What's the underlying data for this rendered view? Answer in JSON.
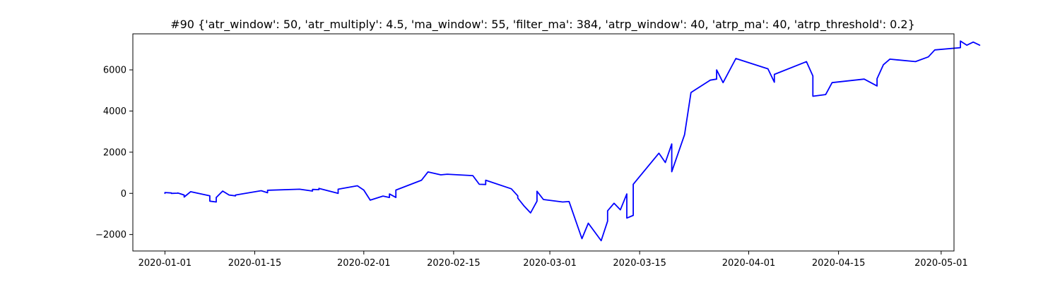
{
  "chart_data": {
    "type": "line",
    "title": "#90 {'atr_window': 50, 'atr_multiply': 4.5, 'ma_window': 55, 'filter_ma': 384, 'atrp_window': 40, 'atrp_ma': 40, 'atrp_threshold': 0.2}",
    "xlabel": "",
    "ylabel": "",
    "grid": false,
    "xlim": [
      "2019-12-27",
      "2020-05-03"
    ],
    "ylim": [
      -2800,
      7750
    ],
    "x_ticks": [
      "2020-01-01",
      "2020-01-15",
      "2020-02-01",
      "2020-02-15",
      "2020-03-01",
      "2020-03-15",
      "2020-04-01",
      "2020-04-15",
      "2020-05-01"
    ],
    "y_ticks": [
      -2000,
      0,
      2000,
      4000,
      6000
    ],
    "y_tick_labels": [
      "−2000",
      "0",
      "2000",
      "4000",
      "6000"
    ],
    "series": [
      {
        "color": "#0000ff",
        "points": [
          [
            "2020-01-01",
            0
          ],
          [
            "2020-01-01",
            40
          ],
          [
            "2020-01-02",
            20
          ],
          [
            "2020-01-02",
            0
          ],
          [
            "2020-01-03",
            10
          ],
          [
            "2020-01-03",
            20
          ],
          [
            "2020-01-04",
            -80
          ],
          [
            "2020-01-04",
            -180
          ],
          [
            "2020-01-05",
            80
          ],
          [
            "2020-01-08",
            -120
          ],
          [
            "2020-01-08",
            -380
          ],
          [
            "2020-01-09",
            -420
          ],
          [
            "2020-01-09",
            -200
          ],
          [
            "2020-01-10",
            110
          ],
          [
            "2020-01-11",
            -80
          ],
          [
            "2020-01-12",
            -120
          ],
          [
            "2020-01-12",
            -80
          ],
          [
            "2020-01-16",
            130
          ],
          [
            "2020-01-17",
            30
          ],
          [
            "2020-01-17",
            150
          ],
          [
            "2020-01-22",
            200
          ],
          [
            "2020-01-24",
            110
          ],
          [
            "2020-01-24",
            190
          ],
          [
            "2020-01-25",
            180
          ],
          [
            "2020-01-25",
            240
          ],
          [
            "2020-01-28",
            0
          ],
          [
            "2020-01-28",
            200
          ],
          [
            "2020-01-31",
            370
          ],
          [
            "2020-02-01",
            160
          ],
          [
            "2020-02-02",
            -330
          ],
          [
            "2020-02-04",
            -130
          ],
          [
            "2020-02-05",
            -200
          ],
          [
            "2020-02-05",
            -30
          ],
          [
            "2020-02-06",
            -200
          ],
          [
            "2020-02-06",
            160
          ],
          [
            "2020-02-10",
            640
          ],
          [
            "2020-02-11",
            1040
          ],
          [
            "2020-02-13",
            900
          ],
          [
            "2020-02-14",
            930
          ],
          [
            "2020-02-18",
            860
          ],
          [
            "2020-02-19",
            440
          ],
          [
            "2020-02-20",
            430
          ],
          [
            "2020-02-20",
            640
          ],
          [
            "2020-02-24",
            220
          ],
          [
            "2020-02-25",
            -120
          ],
          [
            "2020-02-25",
            -230
          ],
          [
            "2020-02-26",
            -620
          ],
          [
            "2020-02-27",
            -950
          ],
          [
            "2020-02-28",
            -380
          ],
          [
            "2020-02-28",
            100
          ],
          [
            "2020-02-29",
            -300
          ],
          [
            "2020-03-03",
            -420
          ],
          [
            "2020-03-04",
            -400
          ],
          [
            "2020-03-06",
            -2200
          ],
          [
            "2020-03-07",
            -1450
          ],
          [
            "2020-03-09",
            -2300
          ],
          [
            "2020-03-10",
            -1350
          ],
          [
            "2020-03-10",
            -850
          ],
          [
            "2020-03-11",
            -480
          ],
          [
            "2020-03-12",
            -800
          ],
          [
            "2020-03-13",
            -30
          ],
          [
            "2020-03-13",
            -1200
          ],
          [
            "2020-03-14",
            -1070
          ],
          [
            "2020-03-14",
            440
          ],
          [
            "2020-03-18",
            1950
          ],
          [
            "2020-03-19",
            1500
          ],
          [
            "2020-03-20",
            2400
          ],
          [
            "2020-03-20",
            1050
          ],
          [
            "2020-03-22",
            2850
          ],
          [
            "2020-03-23",
            4900
          ],
          [
            "2020-03-26",
            5500
          ],
          [
            "2020-03-27",
            5550
          ],
          [
            "2020-03-27",
            6000
          ],
          [
            "2020-03-28",
            5380
          ],
          [
            "2020-03-30",
            6550
          ],
          [
            "2020-04-04",
            6050
          ],
          [
            "2020-04-05",
            5400
          ],
          [
            "2020-04-05",
            5780
          ],
          [
            "2020-04-10",
            6400
          ],
          [
            "2020-04-11",
            5700
          ],
          [
            "2020-04-11",
            4720
          ],
          [
            "2020-04-13",
            4800
          ],
          [
            "2020-04-14",
            5380
          ],
          [
            "2020-04-19",
            5550
          ],
          [
            "2020-04-21",
            5220
          ],
          [
            "2020-04-21",
            5570
          ],
          [
            "2020-04-22",
            6250
          ],
          [
            "2020-04-23",
            6520
          ],
          [
            "2020-04-27",
            6400
          ],
          [
            "2020-04-29",
            6630
          ],
          [
            "2020-04-30",
            6970
          ],
          [
            "2020-05-04",
            7080
          ],
          [
            "2020-05-04",
            7400
          ],
          [
            "2020-05-05",
            7200
          ],
          [
            "2020-05-06",
            7350
          ],
          [
            "2020-05-07",
            7200
          ]
        ]
      }
    ]
  }
}
